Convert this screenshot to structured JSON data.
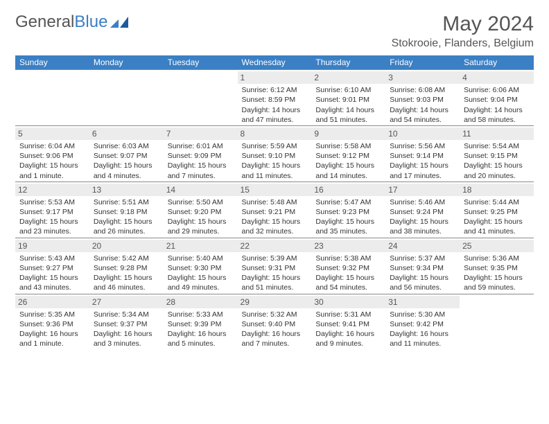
{
  "brand": {
    "name_part1": "General",
    "name_part2": "Blue"
  },
  "title": "May 2024",
  "location": "Stokrooie, Flanders, Belgium",
  "colors": {
    "header_bg": "#3b7fc4",
    "daynum_bg": "#ececec",
    "text": "#333333",
    "border": "#888888"
  },
  "day_headers": [
    "Sunday",
    "Monday",
    "Tuesday",
    "Wednesday",
    "Thursday",
    "Friday",
    "Saturday"
  ],
  "weeks": [
    [
      {
        "n": "",
        "lines": []
      },
      {
        "n": "",
        "lines": []
      },
      {
        "n": "",
        "lines": []
      },
      {
        "n": "1",
        "lines": [
          "Sunrise: 6:12 AM",
          "Sunset: 8:59 PM",
          "Daylight: 14 hours and 47 minutes."
        ]
      },
      {
        "n": "2",
        "lines": [
          "Sunrise: 6:10 AM",
          "Sunset: 9:01 PM",
          "Daylight: 14 hours and 51 minutes."
        ]
      },
      {
        "n": "3",
        "lines": [
          "Sunrise: 6:08 AM",
          "Sunset: 9:03 PM",
          "Daylight: 14 hours and 54 minutes."
        ]
      },
      {
        "n": "4",
        "lines": [
          "Sunrise: 6:06 AM",
          "Sunset: 9:04 PM",
          "Daylight: 14 hours and 58 minutes."
        ]
      }
    ],
    [
      {
        "n": "5",
        "lines": [
          "Sunrise: 6:04 AM",
          "Sunset: 9:06 PM",
          "Daylight: 15 hours and 1 minute."
        ]
      },
      {
        "n": "6",
        "lines": [
          "Sunrise: 6:03 AM",
          "Sunset: 9:07 PM",
          "Daylight: 15 hours and 4 minutes."
        ]
      },
      {
        "n": "7",
        "lines": [
          "Sunrise: 6:01 AM",
          "Sunset: 9:09 PM",
          "Daylight: 15 hours and 7 minutes."
        ]
      },
      {
        "n": "8",
        "lines": [
          "Sunrise: 5:59 AM",
          "Sunset: 9:10 PM",
          "Daylight: 15 hours and 11 minutes."
        ]
      },
      {
        "n": "9",
        "lines": [
          "Sunrise: 5:58 AM",
          "Sunset: 9:12 PM",
          "Daylight: 15 hours and 14 minutes."
        ]
      },
      {
        "n": "10",
        "lines": [
          "Sunrise: 5:56 AM",
          "Sunset: 9:14 PM",
          "Daylight: 15 hours and 17 minutes."
        ]
      },
      {
        "n": "11",
        "lines": [
          "Sunrise: 5:54 AM",
          "Sunset: 9:15 PM",
          "Daylight: 15 hours and 20 minutes."
        ]
      }
    ],
    [
      {
        "n": "12",
        "lines": [
          "Sunrise: 5:53 AM",
          "Sunset: 9:17 PM",
          "Daylight: 15 hours and 23 minutes."
        ]
      },
      {
        "n": "13",
        "lines": [
          "Sunrise: 5:51 AM",
          "Sunset: 9:18 PM",
          "Daylight: 15 hours and 26 minutes."
        ]
      },
      {
        "n": "14",
        "lines": [
          "Sunrise: 5:50 AM",
          "Sunset: 9:20 PM",
          "Daylight: 15 hours and 29 minutes."
        ]
      },
      {
        "n": "15",
        "lines": [
          "Sunrise: 5:48 AM",
          "Sunset: 9:21 PM",
          "Daylight: 15 hours and 32 minutes."
        ]
      },
      {
        "n": "16",
        "lines": [
          "Sunrise: 5:47 AM",
          "Sunset: 9:23 PM",
          "Daylight: 15 hours and 35 minutes."
        ]
      },
      {
        "n": "17",
        "lines": [
          "Sunrise: 5:46 AM",
          "Sunset: 9:24 PM",
          "Daylight: 15 hours and 38 minutes."
        ]
      },
      {
        "n": "18",
        "lines": [
          "Sunrise: 5:44 AM",
          "Sunset: 9:25 PM",
          "Daylight: 15 hours and 41 minutes."
        ]
      }
    ],
    [
      {
        "n": "19",
        "lines": [
          "Sunrise: 5:43 AM",
          "Sunset: 9:27 PM",
          "Daylight: 15 hours and 43 minutes."
        ]
      },
      {
        "n": "20",
        "lines": [
          "Sunrise: 5:42 AM",
          "Sunset: 9:28 PM",
          "Daylight: 15 hours and 46 minutes."
        ]
      },
      {
        "n": "21",
        "lines": [
          "Sunrise: 5:40 AM",
          "Sunset: 9:30 PM",
          "Daylight: 15 hours and 49 minutes."
        ]
      },
      {
        "n": "22",
        "lines": [
          "Sunrise: 5:39 AM",
          "Sunset: 9:31 PM",
          "Daylight: 15 hours and 51 minutes."
        ]
      },
      {
        "n": "23",
        "lines": [
          "Sunrise: 5:38 AM",
          "Sunset: 9:32 PM",
          "Daylight: 15 hours and 54 minutes."
        ]
      },
      {
        "n": "24",
        "lines": [
          "Sunrise: 5:37 AM",
          "Sunset: 9:34 PM",
          "Daylight: 15 hours and 56 minutes."
        ]
      },
      {
        "n": "25",
        "lines": [
          "Sunrise: 5:36 AM",
          "Sunset: 9:35 PM",
          "Daylight: 15 hours and 59 minutes."
        ]
      }
    ],
    [
      {
        "n": "26",
        "lines": [
          "Sunrise: 5:35 AM",
          "Sunset: 9:36 PM",
          "Daylight: 16 hours and 1 minute."
        ]
      },
      {
        "n": "27",
        "lines": [
          "Sunrise: 5:34 AM",
          "Sunset: 9:37 PM",
          "Daylight: 16 hours and 3 minutes."
        ]
      },
      {
        "n": "28",
        "lines": [
          "Sunrise: 5:33 AM",
          "Sunset: 9:39 PM",
          "Daylight: 16 hours and 5 minutes."
        ]
      },
      {
        "n": "29",
        "lines": [
          "Sunrise: 5:32 AM",
          "Sunset: 9:40 PM",
          "Daylight: 16 hours and 7 minutes."
        ]
      },
      {
        "n": "30",
        "lines": [
          "Sunrise: 5:31 AM",
          "Sunset: 9:41 PM",
          "Daylight: 16 hours and 9 minutes."
        ]
      },
      {
        "n": "31",
        "lines": [
          "Sunrise: 5:30 AM",
          "Sunset: 9:42 PM",
          "Daylight: 16 hours and 11 minutes."
        ]
      },
      {
        "n": "",
        "lines": []
      }
    ]
  ]
}
